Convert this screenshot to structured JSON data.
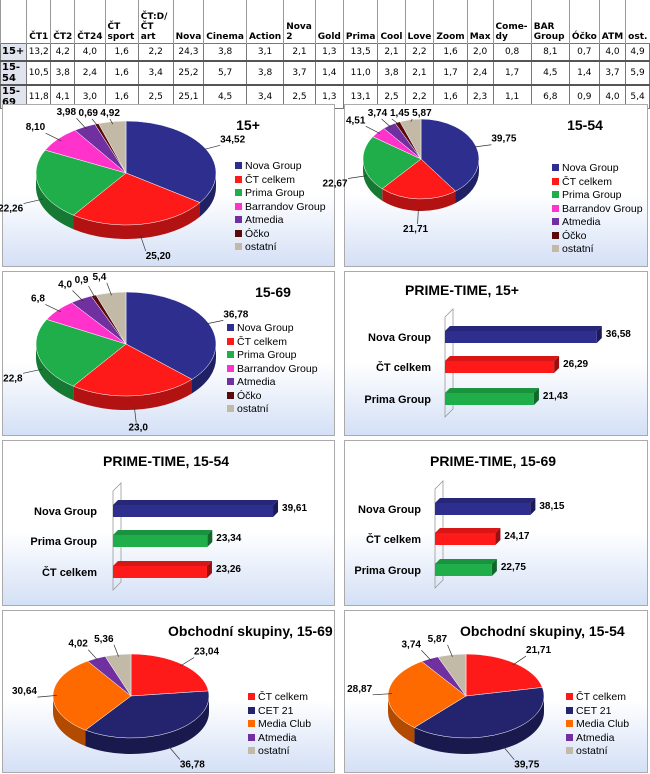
{
  "table": {
    "columns": [
      "",
      "ČT1",
      "ČT2",
      "ČT24",
      "ČT sport",
      "ČT:D/ ČT art",
      "Nova",
      "Cinema",
      "Action",
      "Nova 2",
      "Gold",
      "Prima",
      "Cool",
      "Love",
      "Zoom",
      "Max",
      "Come-dy",
      "BAR Group",
      "Óčko",
      "ATM",
      "ost."
    ],
    "rows": [
      [
        "15+",
        "13,2",
        "4,2",
        "4,0",
        "1,6",
        "2,2",
        "24,3",
        "3,8",
        "3,1",
        "2,1",
        "1,3",
        "13,5",
        "2,1",
        "2,2",
        "1,6",
        "2,0",
        "0,8",
        "8,1",
        "0,7",
        "4,0",
        "4,9"
      ],
      [
        "15-54",
        "10,5",
        "3,8",
        "2,4",
        "1,6",
        "3,4",
        "25,2",
        "5,7",
        "3,8",
        "3,7",
        "1,4",
        "11,0",
        "3,8",
        "2,1",
        "1,7",
        "2,4",
        "1,7",
        "4,5",
        "1,4",
        "3,7",
        "5,9"
      ],
      [
        "15-69",
        "11,8",
        "4,1",
        "3,0",
        "1,6",
        "2,5",
        "25,1",
        "4,5",
        "3,4",
        "2,5",
        "1,3",
        "13,1",
        "2,5",
        "2,2",
        "1,6",
        "2,3",
        "1,1",
        "6,8",
        "0,9",
        "4,0",
        "5,4"
      ]
    ]
  },
  "colors": {
    "Nova Group": "#2e2e8f",
    "ČT celkem": "#ff1a1a",
    "Prima Group": "#1fae4a",
    "Barrandov Group": "#ff33cc",
    "Atmedia": "#7030a0",
    "Óčko": "#5a0a0a",
    "ostatní": "#c2b9a7",
    "CET 21": "#24246e",
    "Media Club": "#ff6a00"
  },
  "chart_data": [
    {
      "type": "pie",
      "title": "15+",
      "categories": [
        "Nova Group",
        "ČT celkem",
        "Prima Group",
        "Barrandov Group",
        "Atmedia",
        "Óčko",
        "ostatní"
      ],
      "values": [
        34.52,
        25.2,
        22.26,
        8.1,
        3.98,
        0.69,
        4.92
      ],
      "labels": [
        "34,52",
        "25,20",
        "22,26",
        "8,10",
        "3,98",
        "0,69",
        "4,92"
      ],
      "legend": "right"
    },
    {
      "type": "pie",
      "title": "15-54",
      "categories": [
        "Nova Group",
        "ČT celkem",
        "Prima Group",
        "Barrandov Group",
        "Atmedia",
        "Óčko",
        "ostatní"
      ],
      "values": [
        39.75,
        21.71,
        22.67,
        4.51,
        3.74,
        1.45,
        5.87
      ],
      "labels": [
        "39,75",
        "21,71",
        "22,67",
        "4,51",
        "3,74",
        "1,45",
        "5,87"
      ],
      "legend": "right"
    },
    {
      "type": "pie",
      "title": "15-69",
      "categories": [
        "Nova Group",
        "ČT celkem",
        "Prima Group",
        "Barrandov Group",
        "Atmedia",
        "Óčko",
        "ostatní"
      ],
      "values": [
        36.78,
        23.0,
        22.8,
        6.8,
        4.0,
        0.9,
        5.4
      ],
      "labels": [
        "36,78",
        "23,0",
        "22,8",
        "6,8",
        "4,0",
        "0,9",
        "5,4"
      ],
      "legend": "right"
    },
    {
      "type": "bar",
      "title": "PRIME-TIME, 15+",
      "categories": [
        "Nova Group",
        "ČT celkem",
        "Prima Group"
      ],
      "values": [
        36.58,
        26.29,
        21.43
      ],
      "labels": [
        "36,58",
        "26,29",
        "21,43"
      ]
    },
    {
      "type": "bar",
      "title": "PRIME-TIME, 15-54",
      "categories": [
        "Nova Group",
        "Prima Group",
        "ČT celkem"
      ],
      "values": [
        39.61,
        23.34,
        23.26
      ],
      "labels": [
        "39,61",
        "23,34",
        "23,26"
      ]
    },
    {
      "type": "bar",
      "title": "PRIME-TIME, 15-69",
      "categories": [
        "Nova Group",
        "ČT celkem",
        "Prima Group"
      ],
      "values": [
        38.15,
        24.17,
        22.75
      ],
      "labels": [
        "38,15",
        "24,17",
        "22,75"
      ]
    },
    {
      "type": "pie",
      "title": "Obchodní skupiny, 15-69",
      "categories": [
        "ČT celkem",
        "CET 21",
        "Media Club",
        "Atmedia",
        "ostatní"
      ],
      "values": [
        23.04,
        36.78,
        30.64,
        4.02,
        5.36
      ],
      "labels": [
        "23,04",
        "36,78",
        "30,64",
        "4,02",
        "5,36"
      ],
      "legend": "right"
    },
    {
      "type": "pie",
      "title": "Obchodní skupiny, 15-54",
      "categories": [
        "ČT celkem",
        "CET 21",
        "Media Club",
        "Atmedia",
        "ostatní"
      ],
      "values": [
        21.71,
        39.75,
        28.87,
        3.74,
        5.87
      ],
      "labels": [
        "21,71",
        "39,75",
        "28,87",
        "3,74",
        "5,87"
      ],
      "legend": "right"
    }
  ]
}
